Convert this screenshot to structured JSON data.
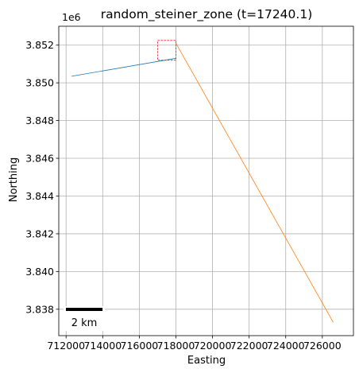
{
  "chart_data": {
    "type": "line",
    "title": "random_steiner_zone (t=17240.1)",
    "xlabel": "Easting",
    "ylabel": "Northing",
    "y_offset_label": "1e6",
    "xlim": [
      711600,
      727700
    ],
    "ylim": [
      3836600,
      3853000
    ],
    "y_multiplier": 1000000,
    "grid": true,
    "x_ticks": [
      {
        "value": 712000,
        "label": "712000"
      },
      {
        "value": 714000,
        "label": "714000"
      },
      {
        "value": 716000,
        "label": "716000"
      },
      {
        "value": 718000,
        "label": "718000"
      },
      {
        "value": 720000,
        "label": "720000"
      },
      {
        "value": 722000,
        "label": "722000"
      },
      {
        "value": 724000,
        "label": "724000"
      },
      {
        "value": 726000,
        "label": "726000"
      }
    ],
    "y_ticks": [
      {
        "value": 3838000,
        "label": "3.838"
      },
      {
        "value": 3840000,
        "label": "3.840"
      },
      {
        "value": 3842000,
        "label": "3.842"
      },
      {
        "value": 3844000,
        "label": "3.844"
      },
      {
        "value": 3846000,
        "label": "3.846"
      },
      {
        "value": 3848000,
        "label": "3.848"
      },
      {
        "value": 3850000,
        "label": "3.850"
      },
      {
        "value": 3852000,
        "label": "3.852"
      }
    ],
    "series": [
      {
        "color": "#1f77b4",
        "x": [
          712300,
          718000
        ],
        "y": [
          3850350,
          3851300
        ]
      },
      {
        "color": "#ff7f0e",
        "x": [
          718000,
          726600
        ],
        "y": [
          3852100,
          3837300
        ]
      }
    ],
    "zone_box": {
      "x_min": 717000,
      "x_max": 718000,
      "y_min": 3851200,
      "y_max": 3852250,
      "color": "#d62728",
      "style": "dashed"
    },
    "scale_bar": {
      "label": "2 km",
      "length": 2000,
      "placement": "lower-left"
    }
  }
}
